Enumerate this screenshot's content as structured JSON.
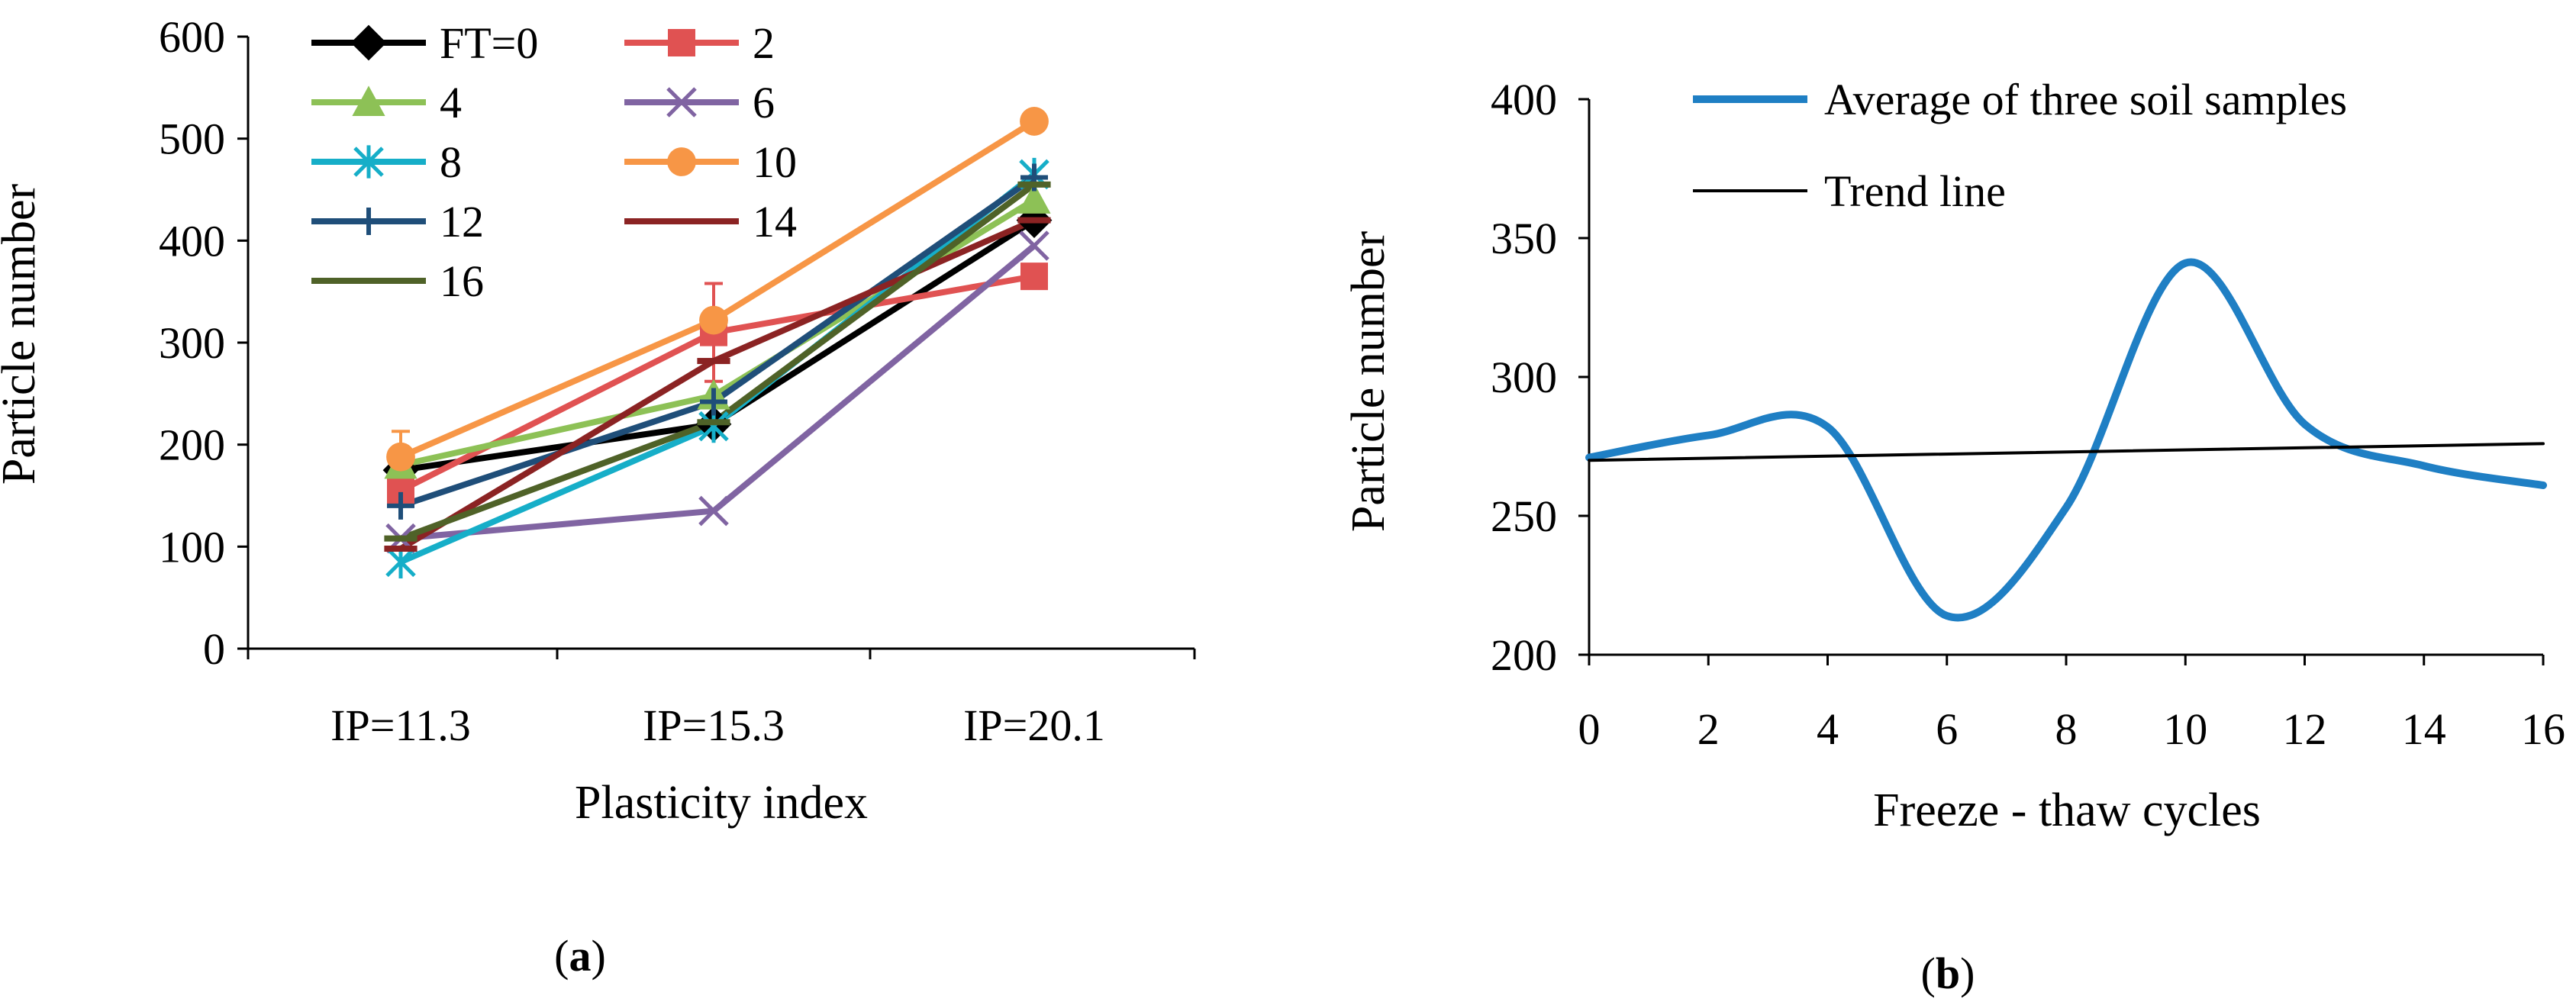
{
  "chart_data": [
    {
      "panel": "a",
      "type": "line",
      "caption": "a",
      "title": "",
      "xlabel": "Plasticity index",
      "ylabel": "Particle number",
      "categories": [
        "IP=11.3",
        "IP=15.3",
        "IP=20.1"
      ],
      "ylim": [
        0,
        600
      ],
      "yticks": [
        "0",
        "100",
        "200",
        "300",
        "400",
        "500",
        "600"
      ],
      "grid": false,
      "legend_position": "top-left",
      "series": [
        {
          "name": "FT=0",
          "values": [
            175,
            220,
            420
          ],
          "color": "#000000",
          "marker": "diamond"
        },
        {
          "name": "2",
          "values": [
            155,
            310,
            365
          ],
          "color": "#e05252",
          "marker": "square",
          "error": [
            null,
            48,
            null
          ]
        },
        {
          "name": "4",
          "values": [
            180,
            248,
            440
          ],
          "color": "#8dc156",
          "marker": "triangle"
        },
        {
          "name": "6",
          "values": [
            108,
            135,
            395
          ],
          "color": "#8064a2",
          "marker": "x"
        },
        {
          "name": "8",
          "values": [
            85,
            218,
            465
          ],
          "color": "#16aec8",
          "marker": "asterisk"
        },
        {
          "name": "10",
          "values": [
            188,
            322,
            517
          ],
          "color": "#f79646",
          "marker": "circle",
          "error": [
            25,
            null,
            null
          ]
        },
        {
          "name": "12",
          "values": [
            140,
            242,
            462
          ],
          "color": "#1f4e79",
          "marker": "plus"
        },
        {
          "name": "14",
          "values": [
            98,
            282,
            420
          ],
          "color": "#8b2323",
          "marker": "dash"
        },
        {
          "name": "16",
          "values": [
            108,
            222,
            455
          ],
          "color": "#4f6228",
          "marker": "dash"
        }
      ]
    },
    {
      "panel": "b",
      "type": "line",
      "caption": "b",
      "title": "",
      "xlabel": "Freeze - thaw cycles",
      "ylabel": "Particle number",
      "xlim": [
        0,
        16
      ],
      "ylim": [
        200,
        400
      ],
      "xticks": [
        "0",
        "2",
        "4",
        "6",
        "8",
        "10",
        "12",
        "14",
        "16"
      ],
      "yticks": [
        "200",
        "250",
        "300",
        "350",
        "400"
      ],
      "grid": false,
      "legend_position": "top",
      "series": [
        {
          "name": "Average of three soil samples",
          "x": [
            0,
            2,
            4,
            6,
            8,
            10,
            12,
            14,
            16
          ],
          "y": [
            271,
            279,
            282,
            214,
            253,
            341,
            283,
            268,
            261
          ],
          "color": "#1f7fc4",
          "smooth": true
        },
        {
          "name": "Trend line",
          "x": [
            0,
            16
          ],
          "y": [
            270,
            276
          ],
          "color": "#000000",
          "smooth": false
        }
      ]
    }
  ]
}
